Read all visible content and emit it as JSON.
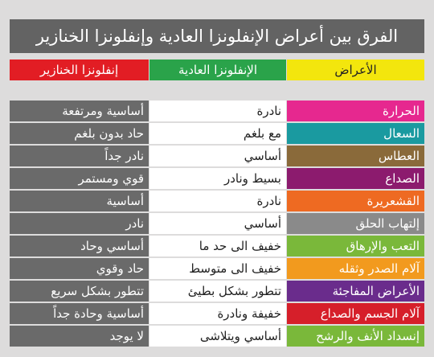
{
  "title": "الفرق بين أعراض الإنفلونزا العادية وإنفلونزا الخنازير",
  "headers": {
    "symptoms": "الأعراض",
    "regular": "الإنفلونزا العادية",
    "swine": "إنفلونزا الخنازير"
  },
  "rows": [
    {
      "symptom": "الحرارة",
      "color": "#e6288f",
      "regular": "نادرة",
      "swine": "أساسية ومرتفعة"
    },
    {
      "symptom": "السعال",
      "color": "#1a9aa0",
      "regular": "مع بلغم",
      "swine": "حاد بدون بلغم"
    },
    {
      "symptom": "العطاس",
      "color": "#8a6a3a",
      "regular": "أساسي",
      "swine": "نادر جداً"
    },
    {
      "symptom": "الصداع",
      "color": "#8c1b6e",
      "regular": "بسيط ونادر",
      "swine": "قوي ومستمر"
    },
    {
      "symptom": "القشعريرة",
      "color": "#ee6a22",
      "regular": "نادرة",
      "swine": "أساسية"
    },
    {
      "symptom": "إلتهاب الحلق",
      "color": "#8a8a8a",
      "regular": "أساسي",
      "swine": "نادر"
    },
    {
      "symptom": "التعب والإرهاق",
      "color": "#7ab83a",
      "regular": "خفيف الى حد ما",
      "swine": "أساسي وحاد"
    },
    {
      "symptom": "آلام الصدر وثقله",
      "color": "#f29a1e",
      "regular": "خفيف الى متوسط",
      "swine": "حاد وقوي"
    },
    {
      "symptom": "الأعراض المفاجئة",
      "color": "#6a2c8c",
      "regular": "تتطور بشكل بطيئ",
      "swine": "تتطور بشكل سريع"
    },
    {
      "symptom": "آلام الجسم والصداع",
      "color": "#d61f2a",
      "regular": "خفيفة ونادرة",
      "swine": "أساسية وحادة جداً"
    },
    {
      "symptom": "إنسداد الأنف والرشح",
      "color": "#7ab83a",
      "regular": "أساسي ويتلاشى",
      "swine": "لا يوجد"
    }
  ]
}
